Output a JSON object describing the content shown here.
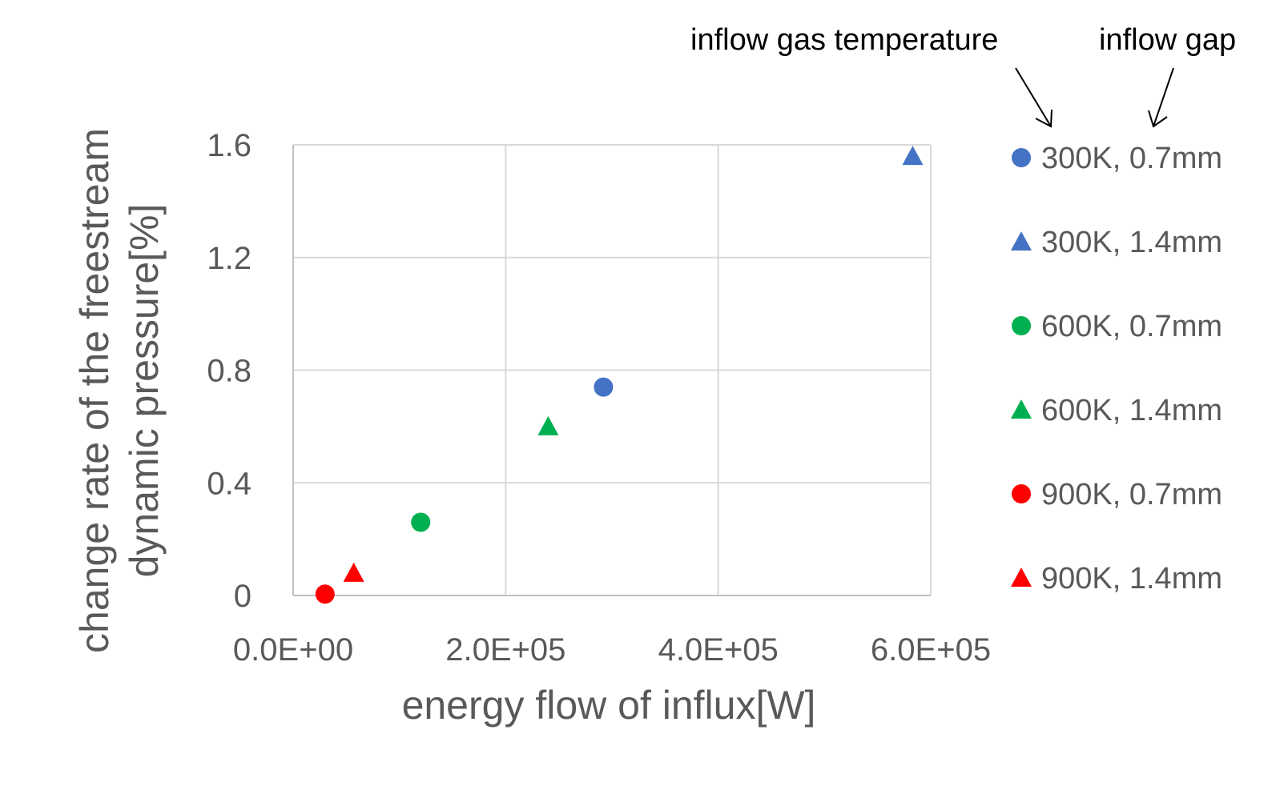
{
  "chart_data": {
    "type": "scatter",
    "xlabel": "energy flow of influx[W]",
    "ylabel_lines": [
      "change rate of the freestream",
      "dynamic pressure[%]"
    ],
    "xlim": [
      0,
      600000
    ],
    "ylim": [
      0,
      1.6
    ],
    "x_ticks": [
      0,
      200000,
      400000,
      600000
    ],
    "x_tick_labels": [
      "0.0E+00",
      "2.0E+05",
      "4.0E+05",
      "6.0E+05"
    ],
    "y_ticks": [
      0,
      0.4,
      0.8,
      1.2,
      1.6
    ],
    "y_tick_labels": [
      "0",
      "0.4",
      "0.8",
      "1.2",
      "1.6"
    ],
    "grid": true,
    "legend_position": "right",
    "annotations": [
      "inflow gas temperature",
      "inflow gap"
    ],
    "series": [
      {
        "name": "300K, 0.7mm",
        "marker": "circle",
        "color": "#4472C4",
        "points": [
          [
            292000,
            0.74
          ]
        ]
      },
      {
        "name": "300K, 1.4mm",
        "marker": "triangle",
        "color": "#4472C4",
        "points": [
          [
            583000,
            1.56
          ]
        ]
      },
      {
        "name": "600K, 0.7mm",
        "marker": "circle",
        "color": "#00B050",
        "points": [
          [
            120000,
            0.26
          ]
        ]
      },
      {
        "name": "600K, 1.4mm",
        "marker": "triangle",
        "color": "#00B050",
        "points": [
          [
            240000,
            0.6
          ]
        ]
      },
      {
        "name": "900K, 0.7mm",
        "marker": "circle",
        "color": "#FF0000",
        "points": [
          [
            30000,
            0.005
          ]
        ]
      },
      {
        "name": "900K, 1.4mm",
        "marker": "triangle",
        "color": "#FF0000",
        "points": [
          [
            57000,
            0.08
          ]
        ]
      }
    ]
  }
}
